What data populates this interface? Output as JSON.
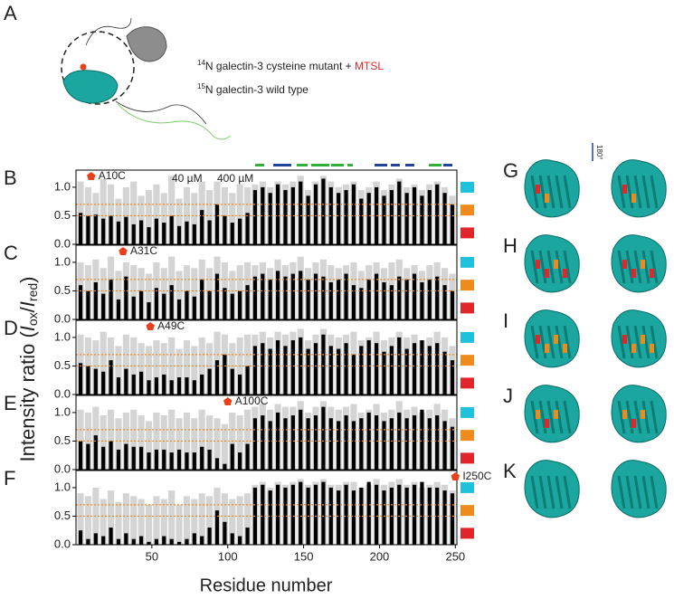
{
  "chart_data": {
    "type": "bar",
    "panel_a": {
      "label": "A",
      "iso1": "14",
      "text1": "N galectin-3 cysteine mutant + ",
      "tag1": "MTSL",
      "iso2": "15",
      "text2": "N galectin-3 wild type"
    },
    "ylabel": {
      "pre": "Intensity ratio (",
      "i1": "I",
      "s1": "ox",
      "mid": "/",
      "i2": "I",
      "s2": "red",
      "post": ")"
    },
    "xlabel": "Residue number",
    "xlim": [
      0,
      251
    ],
    "xticks": [
      50,
      100,
      150,
      200,
      250
    ],
    "ylim": [
      0,
      1.3
    ],
    "yticks": [
      {
        "value": 0,
        "label": "0.0"
      },
      0.5,
      {
        "value": 1,
        "label": "1.0"
      }
    ],
    "reference_lines": [
      0.5,
      0.7
    ],
    "reference_color": "#f08a1c",
    "series": [
      {
        "name": "40 µM",
        "color": "#d4d4d4"
      },
      {
        "name": "400 µM",
        "color": "#000000"
      }
    ],
    "x": [
      3,
      8,
      13,
      18,
      23,
      28,
      33,
      38,
      43,
      48,
      53,
      58,
      63,
      68,
      73,
      78,
      83,
      88,
      93,
      98,
      103,
      108,
      113,
      118,
      123,
      128,
      133,
      138,
      143,
      148,
      153,
      158,
      163,
      168,
      173,
      178,
      183,
      188,
      193,
      198,
      203,
      208,
      213,
      218,
      223,
      228,
      233,
      238,
      243,
      248
    ],
    "panels": [
      {
        "label": "B",
        "mutant": "A10C",
        "residue": 10,
        "values": [
          [
            1.1,
            1.0,
            0.9,
            1.15,
            1.05,
            0.8,
            1.0,
            1.1,
            0.85,
            0.95,
            1.05,
            0.9,
            1.2,
            0.8,
            1.0,
            0.9,
            1.1,
            0.95,
            1.1,
            1.0,
            0.9,
            1.05,
            1.0,
            1.05,
            1.1,
            1.0,
            1.1,
            1.05,
            1.1,
            1.2,
            0.95,
            1.1,
            1.2,
            1.1,
            1.0,
            1.05,
            1.1,
            0.95,
            1.0,
            1.1,
            0.95,
            1.05,
            1.15,
            1.0,
            1.05,
            0.95,
            1.05,
            1.1,
            1.0,
            0.85
          ],
          [
            0.55,
            0.5,
            0.52,
            0.45,
            0.5,
            0.4,
            0.48,
            0.35,
            0.42,
            0.3,
            0.45,
            0.38,
            0.5,
            0.32,
            0.4,
            0.35,
            0.6,
            0.42,
            0.7,
            0.5,
            0.38,
            0.45,
            0.55,
            0.95,
            1.0,
            0.9,
            1.05,
            0.95,
            1.0,
            1.1,
            0.85,
            1.05,
            1.15,
            1.0,
            0.9,
            0.95,
            1.05,
            0.8,
            0.9,
            1.0,
            0.85,
            0.95,
            1.1,
            0.9,
            1.0,
            0.85,
            0.95,
            1.05,
            0.9,
            0.7
          ]
        ]
      },
      {
        "label": "C",
        "mutant": "A31C",
        "residue": 31,
        "values": [
          [
            1.0,
            0.95,
            1.05,
            0.9,
            1.1,
            0.85,
            1.0,
            0.95,
            0.9,
            0.8,
            1.0,
            0.9,
            1.1,
            0.85,
            0.95,
            0.9,
            1.05,
            0.9,
            1.1,
            1.0,
            0.85,
            0.95,
            1.0,
            0.95,
            1.0,
            0.9,
            1.05,
            0.95,
            1.0,
            1.1,
            0.9,
            1.0,
            1.05,
            0.95,
            0.9,
            0.95,
            1.0,
            0.85,
            0.95,
            1.0,
            0.9,
            1.0,
            1.05,
            0.9,
            0.95,
            0.85,
            0.95,
            1.0,
            0.9,
            0.8
          ],
          [
            0.6,
            0.5,
            0.65,
            0.45,
            0.7,
            0.35,
            0.75,
            0.4,
            0.5,
            0.3,
            0.55,
            0.45,
            0.6,
            0.35,
            0.5,
            0.4,
            0.7,
            0.5,
            0.8,
            0.55,
            0.45,
            0.5,
            0.6,
            0.75,
            0.8,
            0.7,
            0.85,
            0.75,
            0.8,
            0.85,
            0.7,
            0.8,
            0.75,
            0.65,
            0.7,
            0.8,
            0.6,
            0.55,
            0.7,
            0.8,
            0.65,
            0.6,
            0.75,
            0.7,
            0.8,
            0.65,
            0.7,
            0.75,
            0.6,
            0.5
          ]
        ]
      },
      {
        "label": "D",
        "mutant": "A49C",
        "residue": 49,
        "values": [
          [
            1.05,
            1.0,
            0.95,
            1.1,
            1.0,
            0.85,
            1.05,
            1.0,
            0.9,
            0.85,
            0.95,
            0.9,
            1.0,
            0.8,
            0.95,
            0.85,
            1.0,
            0.9,
            1.1,
            1.05,
            0.9,
            1.0,
            1.05,
            1.05,
            1.1,
            1.0,
            1.1,
            1.05,
            1.1,
            1.15,
            0.95,
            1.05,
            1.15,
            1.05,
            1.0,
            1.05,
            1.1,
            0.95,
            1.0,
            1.1,
            0.95,
            1.0,
            1.1,
            1.0,
            1.05,
            0.95,
            1.0,
            1.1,
            1.0,
            0.85
          ],
          [
            0.55,
            0.5,
            0.45,
            0.4,
            0.6,
            0.3,
            0.45,
            0.35,
            0.4,
            0.25,
            0.3,
            0.35,
            0.25,
            0.3,
            0.3,
            0.25,
            0.35,
            0.45,
            0.6,
            0.7,
            0.45,
            0.35,
            0.5,
            0.85,
            0.9,
            0.8,
            0.95,
            0.85,
            0.95,
            1.0,
            0.8,
            0.9,
            1.05,
            0.85,
            0.8,
            0.9,
            0.7,
            0.85,
            0.95,
            0.9,
            0.75,
            0.85,
            1.0,
            0.8,
            0.9,
            0.95,
            0.85,
            0.9,
            0.75,
            0.6
          ]
        ]
      },
      {
        "label": "E",
        "mutant": "A100C",
        "residue": 100,
        "values": [
          [
            1.05,
            1.0,
            1.1,
            0.95,
            1.05,
            0.9,
            1.0,
            1.05,
            0.95,
            0.85,
            1.0,
            0.95,
            1.05,
            0.9,
            1.0,
            0.9,
            1.05,
            0.95,
            0.9,
            0.8,
            1.0,
            0.95,
            1.05,
            1.1,
            1.15,
            1.05,
            1.15,
            1.1,
            1.1,
            1.2,
            1.0,
            1.1,
            1.2,
            1.1,
            1.05,
            1.1,
            1.15,
            1.0,
            1.05,
            1.15,
            1.0,
            1.05,
            1.2,
            1.05,
            1.1,
            1.0,
            1.05,
            1.15,
            1.05,
            0.9
          ],
          [
            0.5,
            0.45,
            0.6,
            0.4,
            0.5,
            0.35,
            0.45,
            0.4,
            0.4,
            0.3,
            0.35,
            0.35,
            0.3,
            0.35,
            0.3,
            0.3,
            0.4,
            0.35,
            0.2,
            0.1,
            0.45,
            0.3,
            0.45,
            0.9,
            0.95,
            0.85,
            1.0,
            0.9,
            0.95,
            1.05,
            0.9,
            0.95,
            1.1,
            0.9,
            0.85,
            0.95,
            0.85,
            0.9,
            1.0,
            0.95,
            0.85,
            0.9,
            1.0,
            0.9,
            0.95,
            1.05,
            0.9,
            0.95,
            0.85,
            0.75
          ]
        ]
      },
      {
        "label": "F",
        "mutant": "I250C",
        "residue": 250,
        "values": [
          [
            0.9,
            0.85,
            1.0,
            0.8,
            0.95,
            0.75,
            0.9,
            0.85,
            0.8,
            0.7,
            0.85,
            0.8,
            0.95,
            0.7,
            0.85,
            0.8,
            0.9,
            0.85,
            1.0,
            0.9,
            0.8,
            0.85,
            0.9,
            1.05,
            1.1,
            1.0,
            1.1,
            1.05,
            1.1,
            1.15,
            1.05,
            1.1,
            1.15,
            1.05,
            1.05,
            1.1,
            1.1,
            1.0,
            1.05,
            1.15,
            1.05,
            1.1,
            1.15,
            1.05,
            1.1,
            1.0,
            1.05,
            1.1,
            1.05,
            0.95
          ],
          [
            0.25,
            0.1,
            0.2,
            0.15,
            0.3,
            0.1,
            0.2,
            0.1,
            0.15,
            0.05,
            0.1,
            0.15,
            0.1,
            0.05,
            0.1,
            0.2,
            0.15,
            0.3,
            0.6,
            0.4,
            0.2,
            0.15,
            0.3,
            1.0,
            1.05,
            0.95,
            1.05,
            1.0,
            1.05,
            1.1,
            1.0,
            1.05,
            1.1,
            1.0,
            0.95,
            1.05,
            0.95,
            1.0,
            1.1,
            1.05,
            0.95,
            1.0,
            1.05,
            1.0,
            1.05,
            1.1,
            1.0,
            1.0,
            0.95,
            0.9
          ]
        ]
      }
    ],
    "structure_labels": [
      "G",
      "H",
      "I",
      "J",
      "K"
    ],
    "rotation": "180°"
  }
}
